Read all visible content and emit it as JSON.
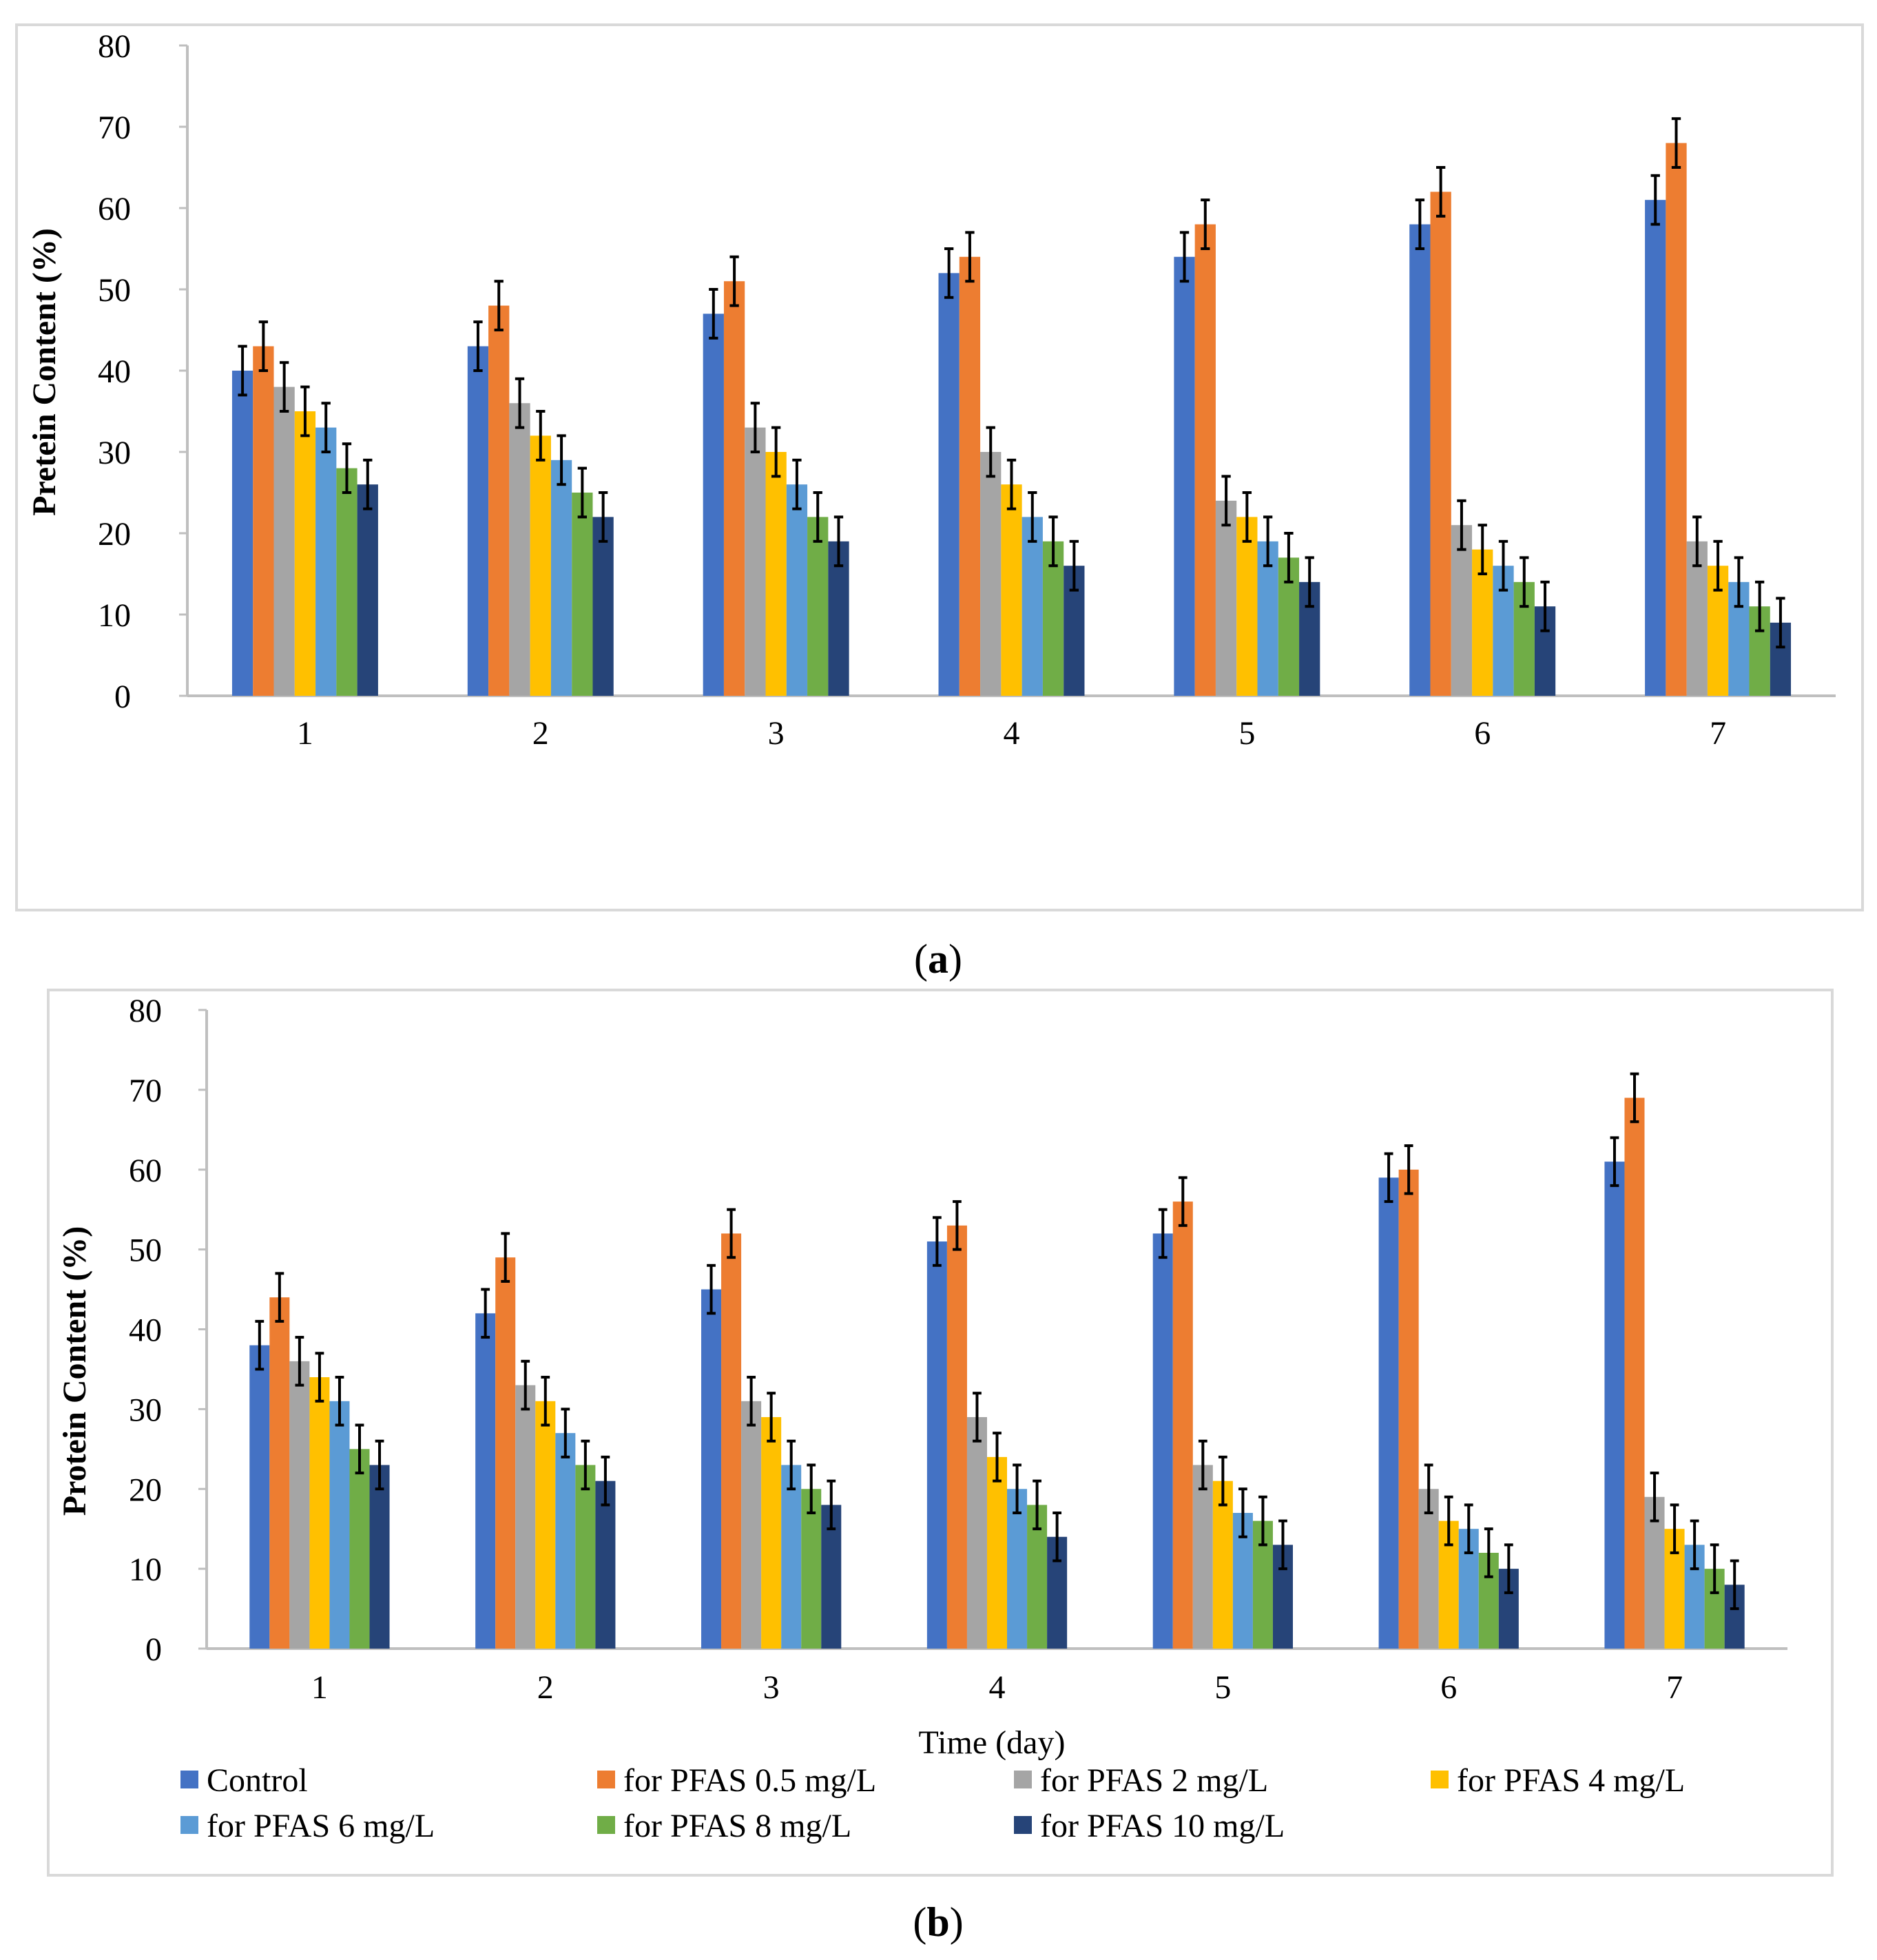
{
  "figure": {
    "series_colors": [
      "#4472c4",
      "#ed7d31",
      "#a5a5a5",
      "#ffc000",
      "#5b9bd5",
      "#70ad47",
      "#264478"
    ],
    "border_color": "#d9d9d9",
    "axis_color": "#bfbfbf",
    "error_bar_color": "#000000"
  },
  "chart_data": [
    {
      "type": "bar",
      "panel_label_open": "(",
      "panel_label_letter": "a",
      "panel_label_close": ")",
      "title": "",
      "xlabel": "",
      "ylabel": "Pretein Content (%)",
      "ylim": [
        0,
        80
      ],
      "yticks": [
        0,
        10,
        20,
        30,
        40,
        50,
        60,
        70,
        80
      ],
      "categories": [
        "1",
        "2",
        "3",
        "4",
        "5",
        "6",
        "7"
      ],
      "error": 3,
      "legend": false,
      "series": [
        {
          "name": "Control",
          "values": [
            40,
            43,
            47,
            52,
            54,
            58,
            61
          ]
        },
        {
          "name": "for PFAS 0.5 mg/L",
          "values": [
            43,
            48,
            51,
            54,
            58,
            62,
            68
          ]
        },
        {
          "name": "for PFAS 2 mg/L",
          "values": [
            38,
            36,
            33,
            30,
            24,
            21,
            19
          ]
        },
        {
          "name": "for PFAS 4 mg/L",
          "values": [
            35,
            32,
            30,
            26,
            22,
            18,
            16
          ]
        },
        {
          "name": "for PFAS 6 mg/L",
          "values": [
            33,
            29,
            26,
            22,
            19,
            16,
            14
          ]
        },
        {
          "name": "for PFAS 8 mg/L",
          "values": [
            28,
            25,
            22,
            19,
            17,
            14,
            11
          ]
        },
        {
          "name": "for PFAS 10 mg/L",
          "values": [
            26,
            22,
            19,
            16,
            14,
            11,
            9
          ]
        }
      ]
    },
    {
      "type": "bar",
      "panel_label_open": "(",
      "panel_label_letter": "b",
      "panel_label_close": ")",
      "title": "",
      "xlabel": "Time (day)",
      "ylabel": "Protein Content (%)",
      "ylim": [
        0,
        80
      ],
      "yticks": [
        0,
        10,
        20,
        30,
        40,
        50,
        60,
        70,
        80
      ],
      "categories": [
        "1",
        "2",
        "3",
        "4",
        "5",
        "6",
        "7"
      ],
      "error": 3,
      "legend": "bottom",
      "series": [
        {
          "name": "Control",
          "values": [
            38,
            42,
            45,
            51,
            52,
            59,
            61
          ]
        },
        {
          "name": "for PFAS 0.5 mg/L",
          "values": [
            44,
            49,
            52,
            53,
            56,
            60,
            69
          ]
        },
        {
          "name": "for PFAS 2 mg/L",
          "values": [
            36,
            33,
            31,
            29,
            23,
            20,
            19
          ]
        },
        {
          "name": "for PFAS 4 mg/L",
          "values": [
            34,
            31,
            29,
            24,
            21,
            16,
            15
          ]
        },
        {
          "name": "for PFAS 6 mg/L",
          "values": [
            31,
            27,
            23,
            20,
            17,
            15,
            13
          ]
        },
        {
          "name": "for PFAS 8 mg/L",
          "values": [
            25,
            23,
            20,
            18,
            16,
            12,
            10
          ]
        },
        {
          "name": "for PFAS 10 mg/L",
          "values": [
            23,
            21,
            18,
            14,
            13,
            10,
            8
          ]
        }
      ]
    }
  ]
}
